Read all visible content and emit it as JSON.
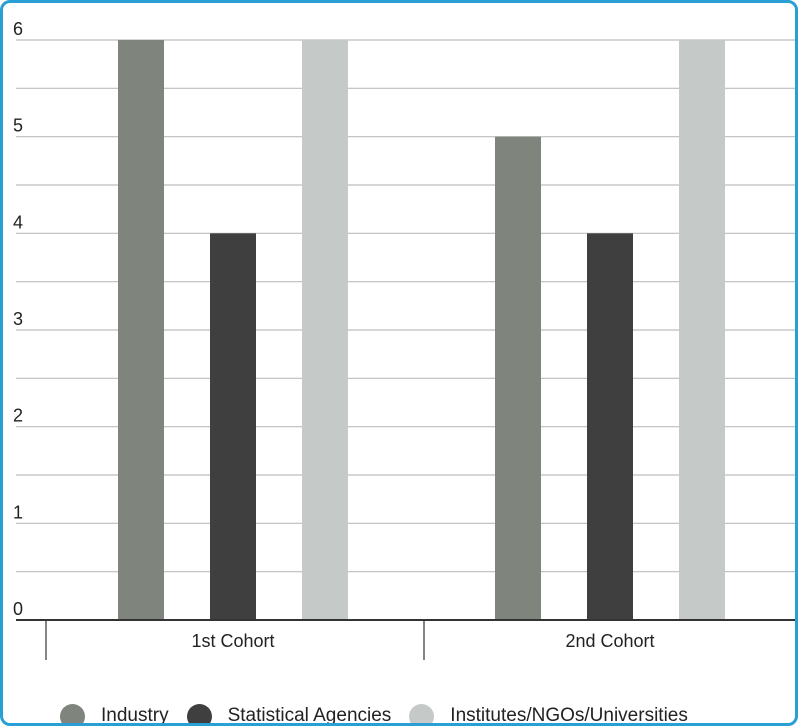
{
  "chart_data": {
    "type": "bar",
    "title": "",
    "xlabel": "",
    "ylabel": "",
    "ylim": [
      0,
      6
    ],
    "y_ticks": [
      "0",
      "1",
      "2",
      "3",
      "4",
      "5",
      "6"
    ],
    "grid": true,
    "legend_position": "bottom",
    "categories": [
      "1st Cohort",
      "2nd Cohort"
    ],
    "series": [
      {
        "name": "Industry",
        "values": [
          6,
          5
        ],
        "color": "#7f847d"
      },
      {
        "name": "Statistical Agencies",
        "values": [
          4,
          4
        ],
        "color": "#3f3f3f"
      },
      {
        "name": "Institutes/NGOs/Universities",
        "values": [
          6,
          6
        ],
        "color": "#c5c9c8"
      }
    ]
  }
}
